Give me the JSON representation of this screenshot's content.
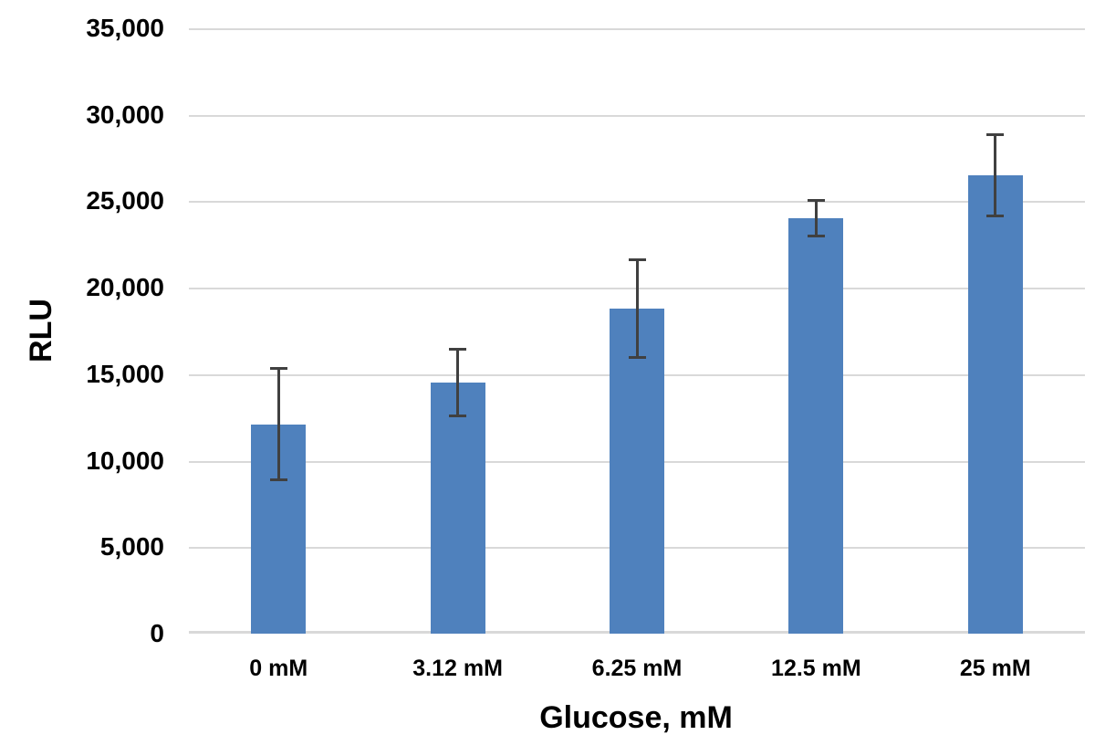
{
  "chart_data": {
    "type": "bar",
    "title": "",
    "xlabel": "Glucose, mM",
    "ylabel": "RLU",
    "categories": [
      "0 mM",
      "3.12 mM",
      "6.25 mM",
      "12.5 mM",
      "25 mM"
    ],
    "series": [
      {
        "name": "RLU",
        "values": [
          12100,
          14500,
          18800,
          24000,
          26500
        ],
        "error_bars": [
          3250,
          1950,
          2850,
          1050,
          2400
        ]
      }
    ],
    "ylim": [
      0,
      35000
    ],
    "ytick_step": 5000,
    "ytick_labels": [
      "0",
      "5,000",
      "10,000",
      "15,000",
      "20,000",
      "25,000",
      "30,000",
      "35,000"
    ],
    "grid": "horizontal",
    "legend": "none",
    "colors": {
      "bar_fill": "#4F81BD",
      "error_bar": "#404040",
      "gridline": "#D9D9D9",
      "text": "#000000",
      "background": "#FFFFFF"
    }
  }
}
